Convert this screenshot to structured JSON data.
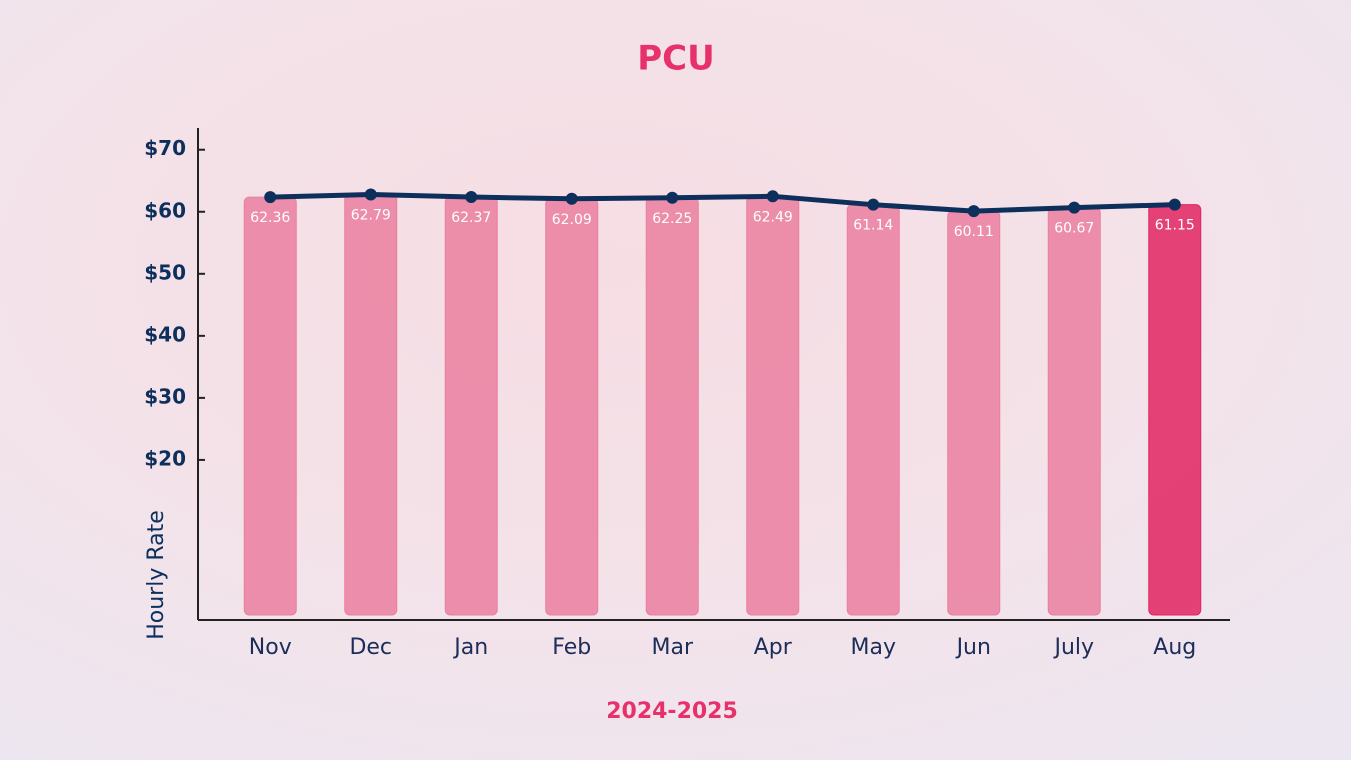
{
  "chart_data": {
    "type": "bar",
    "title": "PCU",
    "x_label": "2024-2025",
    "y_label": "Hourly Rate",
    "categories": [
      "Nov",
      "Dec",
      "Jan",
      "Feb",
      "Mar",
      "Apr",
      "May",
      "Jun",
      "July",
      "Aug"
    ],
    "values": [
      62.36,
      62.79,
      62.37,
      62.09,
      62.25,
      62.49,
      61.14,
      60.11,
      60.67,
      61.15
    ],
    "bar_colors": [
      "#ea7fa0",
      "#ea7fa0",
      "#ea7fa0",
      "#ea7fa0",
      "#ea7fa0",
      "#ea7fa0",
      "#ea7fa0",
      "#ea7fa0",
      "#ea7fa0",
      "#e02462"
    ],
    "line_color": "#0d2f5c",
    "ylim": [
      -5.8,
      73.5
    ],
    "yticks": [
      {
        "value": 20,
        "label": "$20"
      },
      {
        "value": 30,
        "label": "$30"
      },
      {
        "value": 40,
        "label": "$40"
      },
      {
        "value": 50,
        "label": "$50"
      },
      {
        "value": 60,
        "label": "$60"
      },
      {
        "value": 70,
        "label": "$70"
      }
    ]
  }
}
